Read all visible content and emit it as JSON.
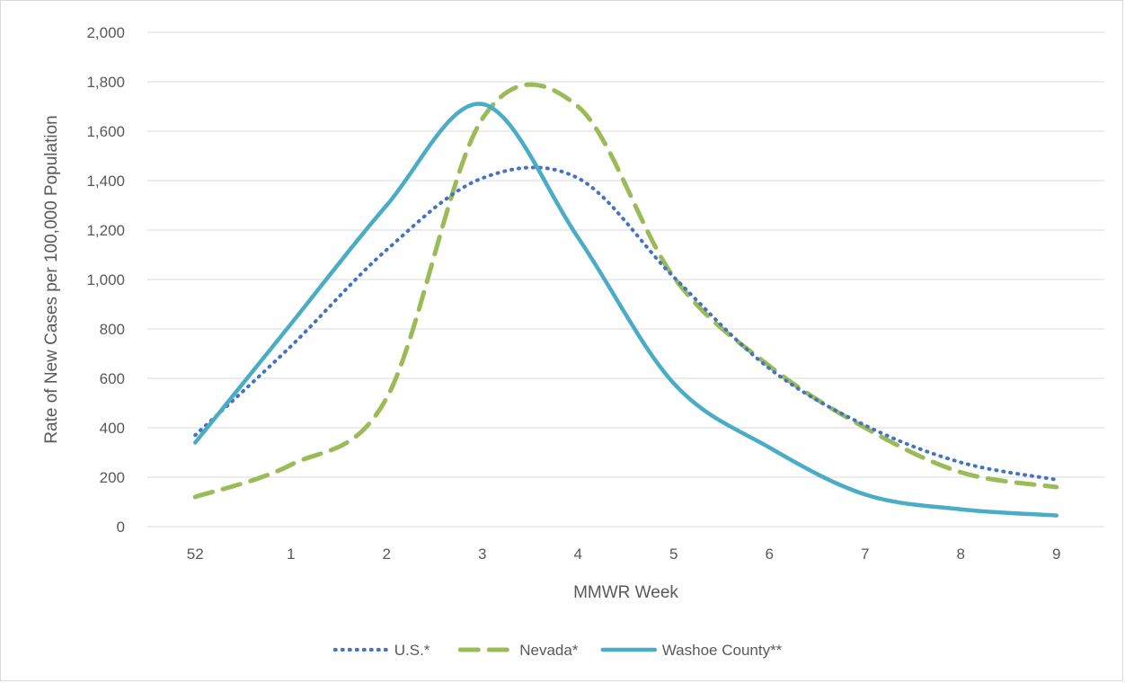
{
  "chart_data": {
    "type": "line",
    "title": "",
    "xlabel": "MMWR Week",
    "ylabel": "Rate of New Cases per 100,000 Population",
    "categories": [
      "52",
      "1",
      "2",
      "3",
      "4",
      "5",
      "6",
      "7",
      "8",
      "9"
    ],
    "ylim": [
      0,
      2000
    ],
    "yticks": [
      "0",
      "200",
      "400",
      "600",
      "800",
      "1,000",
      "1,200",
      "1,400",
      "1,600",
      "1,800",
      "2,000"
    ],
    "ytick_values": [
      0,
      200,
      400,
      600,
      800,
      1000,
      1200,
      1400,
      1600,
      1800,
      2000
    ],
    "grid": "horizontal",
    "legend_position": "bottom",
    "series": [
      {
        "name": "U.S.*",
        "values": [
          370,
          730,
          1120,
          1410,
          1410,
          1010,
          640,
          410,
          260,
          190
        ],
        "color": "#4472c4",
        "style": "dotted"
      },
      {
        "name": "Nevada*",
        "values": [
          120,
          250,
          520,
          1650,
          1700,
          1010,
          650,
          400,
          220,
          160
        ],
        "color": "#9bbb59",
        "style": "dashed"
      },
      {
        "name": "Washoe County**",
        "values": [
          340,
          820,
          1300,
          1710,
          1170,
          580,
          320,
          130,
          70,
          45
        ],
        "color": "#4bacc6",
        "style": "solid"
      }
    ]
  }
}
